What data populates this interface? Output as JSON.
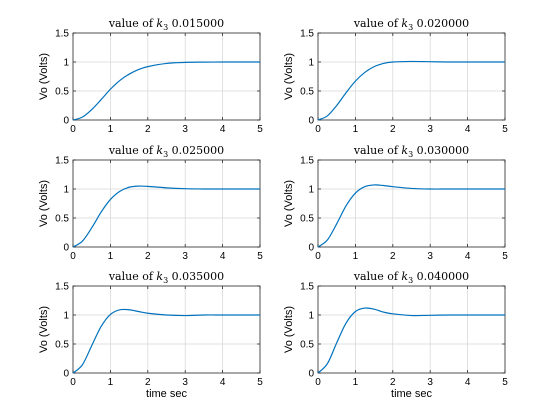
{
  "chart_data": [
    {
      "type": "line",
      "title": "value of k₃ 0.015000",
      "title_prefix": "value of ",
      "title_sub": "3",
      "title_value": "0.015000",
      "xlabel": "",
      "ylabel": "Vo (Volts)",
      "xlim": [
        0,
        5
      ],
      "ylim": [
        0,
        1.5
      ],
      "xticks": [
        "0",
        "1",
        "2",
        "3",
        "4",
        "5"
      ],
      "yticks": [
        "0",
        "0.5",
        "1",
        "1.5"
      ],
      "grid": true,
      "series": [
        {
          "x": [
            0,
            0.25,
            0.5,
            0.75,
            1.0,
            1.25,
            1.5,
            1.75,
            2.0,
            2.5,
            3.0,
            3.5,
            4.0,
            4.5,
            5.0
          ],
          "y": [
            0,
            0.05,
            0.18,
            0.35,
            0.53,
            0.68,
            0.79,
            0.87,
            0.92,
            0.975,
            0.993,
            0.998,
            1.0,
            1.0,
            1.0
          ]
        }
      ]
    },
    {
      "type": "line",
      "title": "value of k₃ 0.020000",
      "title_prefix": "value of ",
      "title_sub": "3",
      "title_value": "0.020000",
      "xlabel": "",
      "ylabel": "Vo (Volts)",
      "xlim": [
        0,
        5
      ],
      "ylim": [
        0,
        1.5
      ],
      "xticks": [
        "0",
        "1",
        "2",
        "3",
        "4",
        "5"
      ],
      "yticks": [
        "0",
        "0.5",
        "1",
        "1.5"
      ],
      "grid": true,
      "series": [
        {
          "x": [
            0,
            0.25,
            0.5,
            0.75,
            1.0,
            1.25,
            1.5,
            1.75,
            2.0,
            2.5,
            3.0,
            3.5,
            4.0,
            4.5,
            5.0
          ],
          "y": [
            0,
            0.07,
            0.25,
            0.47,
            0.67,
            0.82,
            0.92,
            0.975,
            1.0,
            1.01,
            1.005,
            1.0,
            1.0,
            1.0,
            1.0
          ]
        }
      ]
    },
    {
      "type": "line",
      "title": "value of k₃ 0.025000",
      "title_prefix": "value of ",
      "title_sub": "3",
      "title_value": "0.025000",
      "xlabel": "",
      "ylabel": "Vo (Volts)",
      "xlim": [
        0,
        5
      ],
      "ylim": [
        0,
        1.5
      ],
      "xticks": [
        "0",
        "1",
        "2",
        "3",
        "4",
        "5"
      ],
      "yticks": [
        "0",
        "0.5",
        "1",
        "1.5"
      ],
      "grid": true,
      "series": [
        {
          "x": [
            0,
            0.25,
            0.5,
            0.75,
            1.0,
            1.25,
            1.5,
            1.75,
            2.0,
            2.5,
            3.0,
            3.5,
            4.0,
            4.5,
            5.0
          ],
          "y": [
            0,
            0.1,
            0.33,
            0.6,
            0.82,
            0.96,
            1.03,
            1.05,
            1.045,
            1.02,
            1.005,
            1.0,
            1.0,
            1.0,
            1.0
          ]
        }
      ]
    },
    {
      "type": "line",
      "title": "value of k₃ 0.030000",
      "title_prefix": "value of ",
      "title_sub": "3",
      "title_value": "0.030000",
      "xlabel": "",
      "ylabel": "Vo (Volts)",
      "xlim": [
        0,
        5
      ],
      "ylim": [
        0,
        1.5
      ],
      "xticks": [
        "0",
        "1",
        "2",
        "3",
        "4",
        "5"
      ],
      "yticks": [
        "0",
        "0.5",
        "1",
        "1.5"
      ],
      "grid": true,
      "series": [
        {
          "x": [
            0,
            0.25,
            0.5,
            0.75,
            1.0,
            1.25,
            1.5,
            1.75,
            2.0,
            2.5,
            3.0,
            3.5,
            4.0,
            4.5,
            5.0
          ],
          "y": [
            0,
            0.12,
            0.4,
            0.71,
            0.93,
            1.04,
            1.07,
            1.06,
            1.04,
            1.01,
            1.0,
            1.0,
            1.0,
            1.0,
            1.0
          ]
        }
      ]
    },
    {
      "type": "line",
      "title": "value of k₃ 0.035000",
      "title_prefix": "value of ",
      "title_sub": "3",
      "title_value": "0.035000",
      "xlabel": "time sec",
      "ylabel": "Vo (Volts)",
      "xlim": [
        0,
        5
      ],
      "ylim": [
        0,
        1.5
      ],
      "xticks": [
        "0",
        "1",
        "2",
        "3",
        "4",
        "5"
      ],
      "yticks": [
        "0",
        "0.5",
        "1",
        "1.5"
      ],
      "grid": true,
      "series": [
        {
          "x": [
            0,
            0.25,
            0.5,
            0.75,
            1.0,
            1.25,
            1.5,
            1.75,
            2.0,
            2.5,
            3.0,
            3.5,
            4.0,
            4.5,
            5.0
          ],
          "y": [
            0,
            0.14,
            0.47,
            0.8,
            1.01,
            1.09,
            1.09,
            1.06,
            1.03,
            1.0,
            0.99,
            1.0,
            1.0,
            1.0,
            1.0
          ]
        }
      ]
    },
    {
      "type": "line",
      "title": "value of k₃ 0.040000",
      "title_prefix": "value of ",
      "title_sub": "3",
      "title_value": "0.040000",
      "xlabel": "time sec",
      "ylabel": "Vo (Volts)",
      "xlim": [
        0,
        5
      ],
      "ylim": [
        0,
        1.5
      ],
      "xticks": [
        "0",
        "1",
        "2",
        "3",
        "4",
        "5"
      ],
      "yticks": [
        "0",
        "0.5",
        "1",
        "1.5"
      ],
      "grid": true,
      "series": [
        {
          "x": [
            0,
            0.25,
            0.5,
            0.75,
            1.0,
            1.25,
            1.5,
            1.75,
            2.0,
            2.5,
            3.0,
            3.5,
            4.0,
            4.5,
            5.0
          ],
          "y": [
            0,
            0.16,
            0.52,
            0.86,
            1.06,
            1.12,
            1.1,
            1.05,
            1.02,
            0.99,
            0.995,
            1.0,
            1.0,
            1.0,
            1.0
          ]
        }
      ]
    }
  ],
  "colors": {
    "line": "#0072BD"
  }
}
